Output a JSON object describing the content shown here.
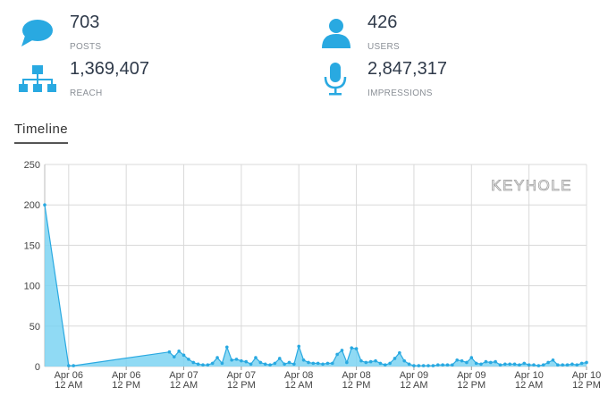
{
  "stats": [
    {
      "value": "703",
      "label": "POSTS"
    },
    {
      "value": "426",
      "label": "USERS"
    },
    {
      "value": "1,369,407",
      "label": "REACH"
    },
    {
      "value": "2,847,317",
      "label": "IMPRESSIONS"
    }
  ],
  "tab": "Timeline",
  "chart_data": {
    "type": "area",
    "watermark": "KEYHOLE",
    "color": "#29a9e1",
    "fill": "#7dd3f2",
    "grid": true,
    "x": [
      "Apr 05 7 PM",
      "Apr 06 12 AM",
      "Apr 06 1 AM",
      "Apr 06 9 PM",
      "Apr 06 10 PM",
      "Apr 06 11 PM",
      "Apr 07 12 AM",
      "Apr 07 1 AM",
      "Apr 07 2 AM",
      "Apr 07 3 AM",
      "Apr 07 4 AM",
      "Apr 07 5 AM",
      "Apr 07 6 AM",
      "Apr 07 7 AM",
      "Apr 07 8 AM",
      "Apr 07 9 AM",
      "Apr 07 10 AM",
      "Apr 07 11 AM",
      "Apr 07 12 PM",
      "Apr 07 1 PM",
      "Apr 07 2 PM",
      "Apr 07 3 PM",
      "Apr 07 4 PM",
      "Apr 07 5 PM",
      "Apr 07 6 PM",
      "Apr 07 7 PM",
      "Apr 07 8 PM",
      "Apr 07 9 PM",
      "Apr 07 10 PM",
      "Apr 07 11 PM",
      "Apr 08 12 AM",
      "Apr 08 1 AM",
      "Apr 08 2 AM",
      "Apr 08 3 AM",
      "Apr 08 4 AM",
      "Apr 08 5 AM",
      "Apr 08 6 AM",
      "Apr 08 7 AM",
      "Apr 08 8 AM",
      "Apr 08 9 AM",
      "Apr 08 10 AM",
      "Apr 08 11 AM",
      "Apr 08 12 PM",
      "Apr 08 1 PM",
      "Apr 08 2 PM",
      "Apr 08 3 PM",
      "Apr 08 4 PM",
      "Apr 08 5 PM",
      "Apr 08 6 PM",
      "Apr 08 7 PM",
      "Apr 08 8 PM",
      "Apr 08 9 PM",
      "Apr 08 10 PM",
      "Apr 08 11 PM",
      "Apr 09 12 AM",
      "Apr 09 1 AM",
      "Apr 09 2 AM",
      "Apr 09 3 AM",
      "Apr 09 4 AM",
      "Apr 09 5 AM",
      "Apr 09 6 AM",
      "Apr 09 7 AM",
      "Apr 09 8 AM",
      "Apr 09 9 AM",
      "Apr 09 10 AM",
      "Apr 09 11 AM",
      "Apr 09 12 PM",
      "Apr 09 1 PM",
      "Apr 09 2 PM",
      "Apr 09 3 PM",
      "Apr 09 4 PM",
      "Apr 09 5 PM",
      "Apr 09 6 PM",
      "Apr 09 7 PM",
      "Apr 09 8 PM",
      "Apr 09 9 PM",
      "Apr 09 10 PM",
      "Apr 09 11 PM",
      "Apr 10 12 AM",
      "Apr 10 1 AM",
      "Apr 10 2 AM",
      "Apr 10 3 AM",
      "Apr 10 4 AM",
      "Apr 10 5 AM",
      "Apr 10 6 AM",
      "Apr 10 7 AM",
      "Apr 10 8 AM",
      "Apr 10 9 AM",
      "Apr 10 10 AM",
      "Apr 10 11 AM",
      "Apr 10 12 PM"
    ],
    "values": [
      200,
      1,
      1,
      18,
      12,
      19,
      14,
      9,
      5,
      3,
      2,
      2,
      4,
      11,
      4,
      24,
      8,
      9,
      7,
      6,
      3,
      11,
      5,
      3,
      2,
      4,
      10,
      3,
      5,
      3,
      25,
      8,
      5,
      4,
      4,
      3,
      4,
      4,
      15,
      20,
      5,
      23,
      22,
      7,
      5,
      6,
      7,
      4,
      2,
      4,
      10,
      17,
      7,
      3,
      1,
      1,
      1,
      1,
      1,
      2,
      2,
      2,
      2,
      8,
      7,
      5,
      11,
      4,
      3,
      6,
      5,
      6,
      2,
      3,
      3,
      3,
      2,
      4,
      2,
      2,
      1,
      2,
      5,
      8,
      2,
      2,
      2,
      3,
      2,
      4,
      5
    ],
    "xlim": [
      "Apr 05 7 PM",
      "Apr 10 12 PM"
    ],
    "xticks": [
      "Apr 06 12 AM",
      "Apr 06 12 PM",
      "Apr 07 12 AM",
      "Apr 07 12 PM",
      "Apr 08 12 AM",
      "Apr 08 12 PM",
      "Apr 09 12 AM",
      "Apr 09 12 PM",
      "Apr 10 12 AM",
      "Apr 10 12 PM"
    ],
    "ylim": [
      0,
      250
    ],
    "yticks": [
      0,
      50,
      100,
      150,
      200,
      250
    ]
  }
}
